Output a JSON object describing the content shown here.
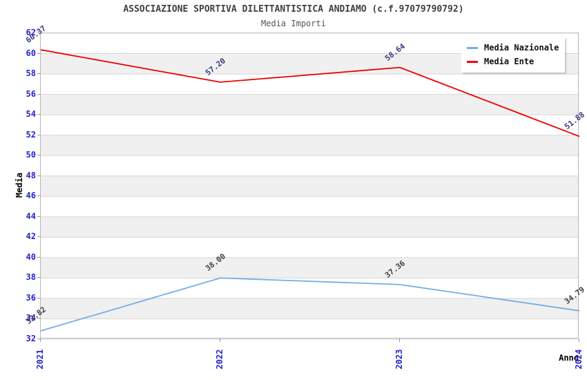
{
  "header": {
    "title": "ASSOCIAZIONE SPORTIVA DILETTANTISTICA ANDIAMO (c.f.97079790792)",
    "subtitle": "Media Importi"
  },
  "chart_data": {
    "type": "line",
    "title": "ASSOCIAZIONE SPORTIVA DILETTANTISTICA ANDIAMO (c.f.97079790792)",
    "subtitle": "Media Importi",
    "xlabel": "Anno",
    "ylabel": "Media",
    "x": [
      "2021",
      "2022",
      "2023",
      "2024"
    ],
    "ylim": [
      32,
      62
    ],
    "ytick_step": 2,
    "grid": true,
    "legend_position": "top-right",
    "series": [
      {
        "name": "Media Nazionale",
        "color": "#76ade2",
        "label_color": "#404048",
        "values": [
          32.82,
          38.0,
          37.36,
          34.79
        ]
      },
      {
        "name": "Media Ente",
        "color": "#ee0000",
        "label_color": "#3a3a80",
        "values": [
          60.37,
          57.2,
          58.64,
          51.88
        ]
      }
    ]
  },
  "colors": {
    "tick_label": "#2323cd",
    "grid_line": "#d6d6d6",
    "band_fill": "#f0f0f0",
    "plot_border": "#b5b5b5",
    "title_text": "#404040"
  }
}
